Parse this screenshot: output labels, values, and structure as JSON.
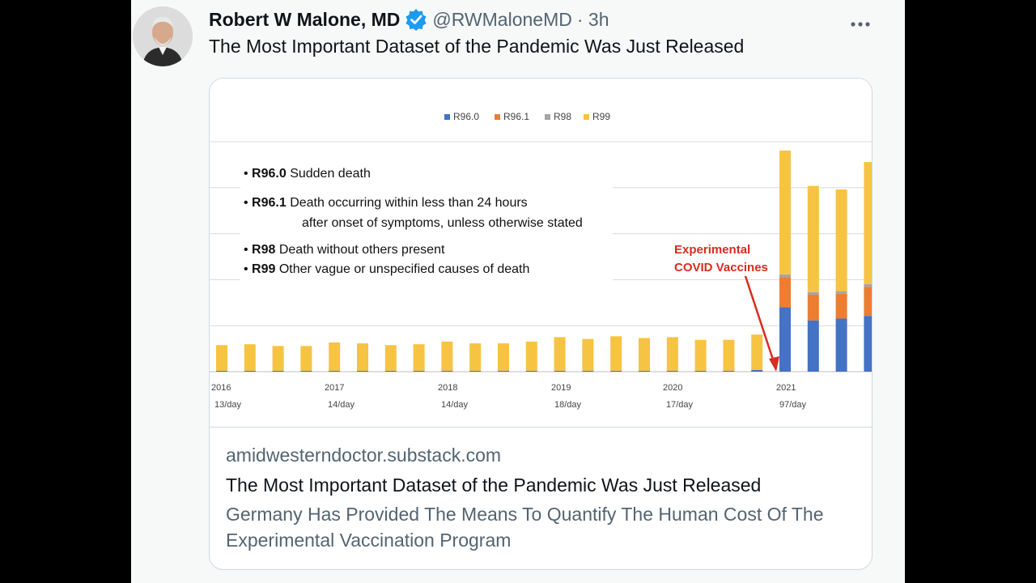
{
  "tweet": {
    "author_name": "Robert W Malone, MD",
    "handle": "@RWMaloneMD",
    "time": "· 3h",
    "more_icon": "more-horizontal-icon",
    "verified_icon": "verified-badge-icon",
    "text": "The Most Important Dataset of the Pandemic Was Just Released"
  },
  "card": {
    "domain": "amidwesterndoctor.substack.com",
    "title": "The Most Important Dataset of the Pandemic Was Just Released",
    "description": "Germany Has Provided The Means To Quantify The Human Cost Of The Experimental Vaccination Program"
  },
  "chart_data": {
    "type": "bar",
    "stacked": true,
    "legend_position": "top",
    "grid": true,
    "series": [
      {
        "name": "R96.0",
        "color": "#4472c4",
        "values": [
          1,
          1,
          1,
          1,
          1,
          1,
          1,
          1,
          1,
          1,
          1,
          1,
          1,
          1,
          1,
          1,
          1,
          1,
          1,
          2,
          73,
          58,
          60,
          63
        ]
      },
      {
        "name": "R96.1",
        "color": "#ed7d31",
        "values": [
          0,
          0,
          0,
          0,
          0,
          0,
          0,
          0,
          0,
          0,
          0,
          0,
          0,
          0,
          0,
          0,
          0,
          0,
          0,
          0,
          34,
          29,
          28,
          33
        ]
      },
      {
        "name": "R98",
        "color": "#a5a5a5",
        "values": [
          0,
          0,
          0,
          0,
          0,
          0,
          0,
          0,
          0,
          0,
          0,
          0,
          0,
          0,
          0,
          0,
          0,
          0,
          0,
          0,
          3,
          3,
          3,
          3
        ]
      },
      {
        "name": "R99",
        "color": "#f7c342",
        "values": [
          29,
          30,
          28,
          28,
          32,
          31,
          29,
          30,
          33,
          31,
          31,
          33,
          38,
          36,
          39,
          37,
          38,
          35,
          35,
          40,
          140,
          120,
          115,
          138
        ]
      }
    ],
    "ylim": [
      0,
      260
    ],
    "x_year_labels": [
      "2016",
      "2017",
      "2018",
      "2019",
      "2020",
      "2021"
    ],
    "x_rate_labels": [
      "13/day",
      "14/day",
      "14/day",
      "18/day",
      "17/day",
      "97/day"
    ],
    "inline_legend": [
      {
        "code": "R96.0",
        "text": "Sudden death",
        "text2": ""
      },
      {
        "code": "R96.1",
        "text": "Death occurring within less than 24 hours",
        "text2": "after onset of symptoms, unless otherwise stated"
      },
      {
        "code": "R98",
        "text": "Death without others present",
        "text2": ""
      },
      {
        "code": "R99",
        "text": "Other vague or unspecified causes of death",
        "text2": ""
      }
    ],
    "annotation": {
      "line1": "Experimental",
      "line2": "COVID Vaccines"
    }
  }
}
